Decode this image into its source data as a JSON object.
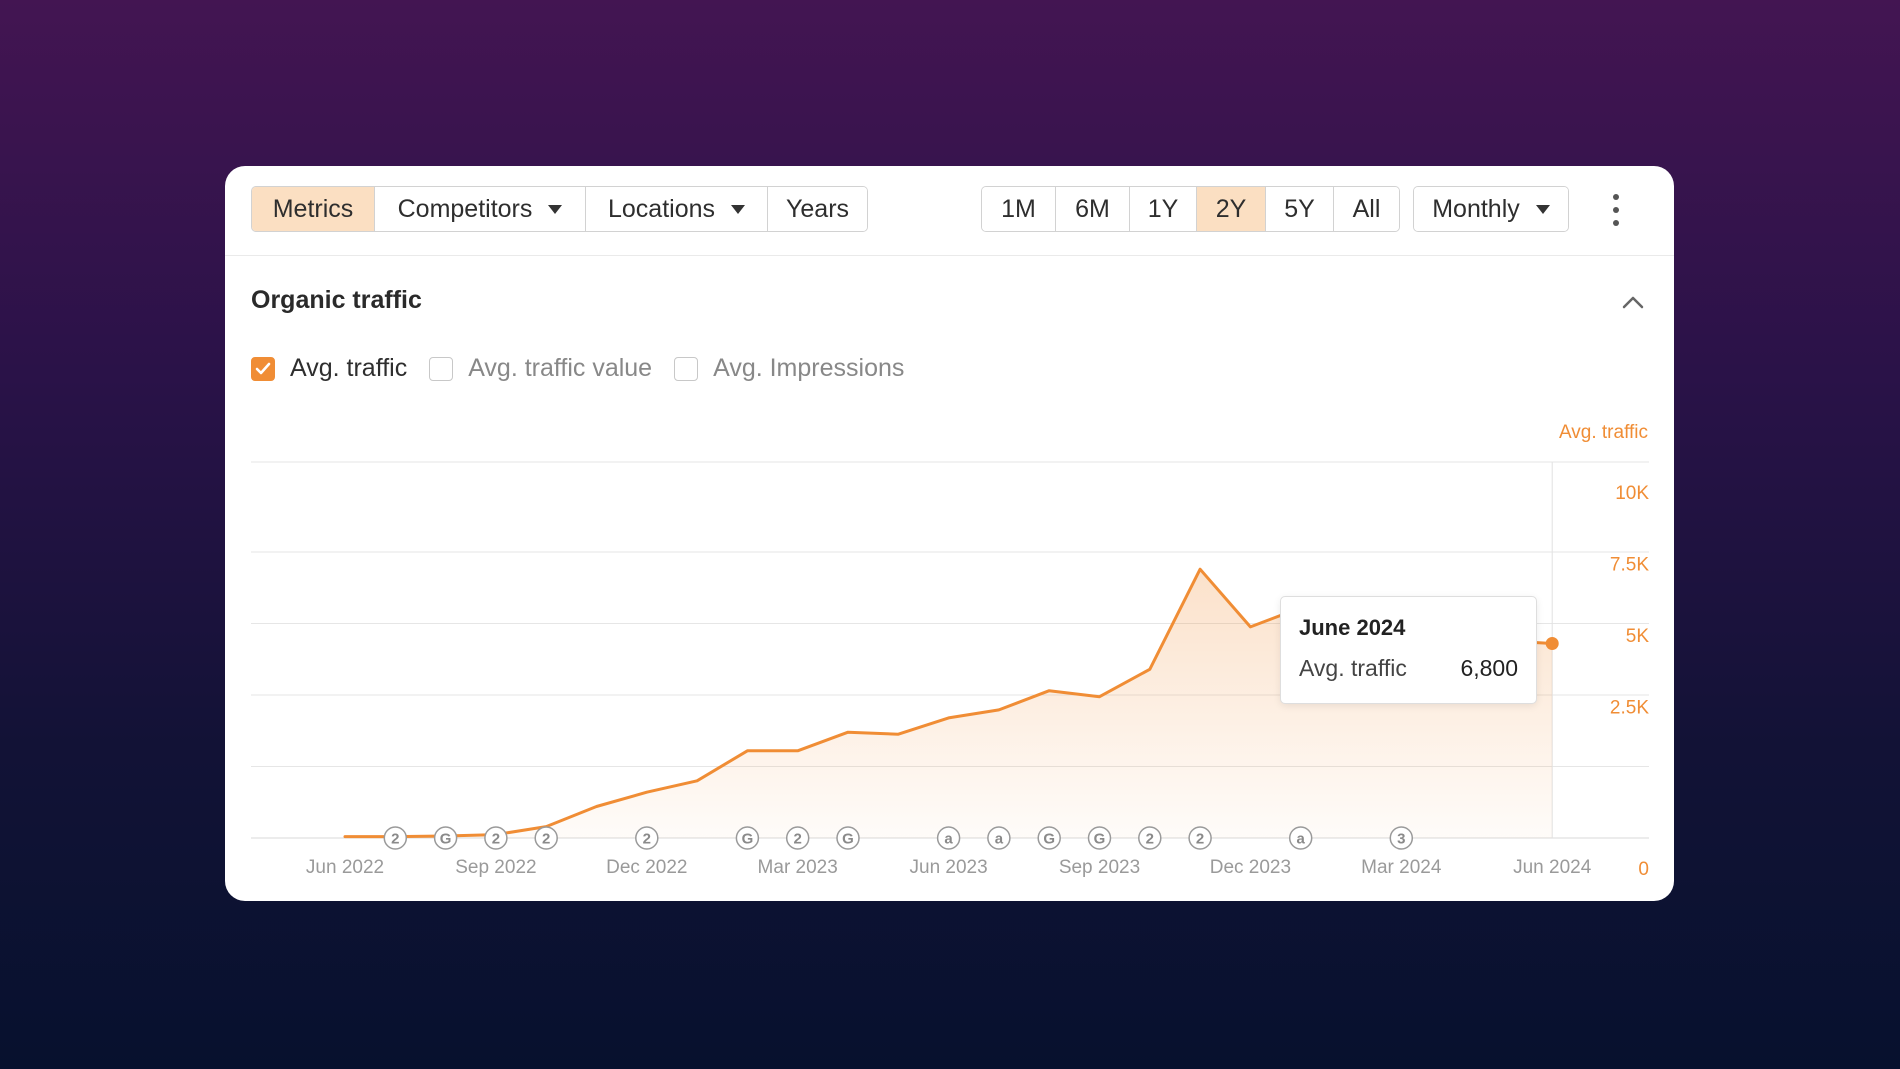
{
  "toolbar": {
    "left_buttons": [
      "Metrics",
      "Competitors",
      "Locations",
      "Years"
    ],
    "range_buttons": [
      "1M",
      "6M",
      "1Y",
      "2Y",
      "5Y",
      "All"
    ],
    "active_range": "2Y",
    "interval": "Monthly"
  },
  "section": {
    "title": "Organic traffic",
    "checks": [
      {
        "label": "Avg. traffic",
        "checked": true
      },
      {
        "label": "Avg. traffic value",
        "checked": false
      },
      {
        "label": "Avg. Impressions",
        "checked": false
      }
    ]
  },
  "tooltip": {
    "date": "June 2024",
    "label": "Avg. traffic",
    "value": "6,800"
  },
  "colors": {
    "accent": "#f08d35",
    "active_button": "#fbdfc2"
  },
  "chart_data": {
    "type": "area",
    "ylabel": "Avg. traffic",
    "ylim": [
      0,
      10000
    ],
    "y_ticks": [
      {
        "value": 0,
        "label": "0"
      },
      {
        "value": 2500,
        "label": "2.5K"
      },
      {
        "value": 5000,
        "label": "5K"
      },
      {
        "value": 7500,
        "label": "7.5K"
      },
      {
        "value": 10000,
        "label": "10K"
      }
    ],
    "x_ticks": [
      {
        "index": 0,
        "label": "Jun 2022"
      },
      {
        "index": 3,
        "label": "Sep 2022"
      },
      {
        "index": 6,
        "label": "Dec 2022"
      },
      {
        "index": 9,
        "label": "Mar 2023"
      },
      {
        "index": 12,
        "label": "Jun 2023"
      },
      {
        "index": 15,
        "label": "Sep 2023"
      },
      {
        "index": 18,
        "label": "Dec 2023"
      },
      {
        "index": 21,
        "label": "Mar 2024"
      },
      {
        "index": 24,
        "label": "Jun 2024"
      }
    ],
    "series": [
      {
        "x": [
          "Jun 2022",
          "Jul 2022",
          "Aug 2022",
          "Sep 2022",
          "Oct 2022",
          "Nov 2022",
          "Dec 2022",
          "Jan 2023",
          "Feb 2023",
          "Mar 2023",
          "Apr 2023",
          "May 2023",
          "Jun 2023",
          "Jul 2023",
          "Aug 2023",
          "Sep 2023",
          "Oct 2023",
          "Nov 2023",
          "Dec 2023",
          "Jan 2024",
          "Feb 2024",
          "Mar 2024",
          "Apr 2024",
          "May 2024",
          "Jun 2024"
        ],
        "values": [
          50,
          50,
          70,
          120,
          400,
          1100,
          1600,
          2000,
          3050,
          3050,
          3700,
          3630,
          4200,
          4480,
          5150,
          4940,
          5900,
          9400,
          7380,
          8050,
          5700,
          6120,
          6550,
          6900,
          6800
        ]
      }
    ],
    "annotations": [
      {
        "x": 1.0,
        "label": "2"
      },
      {
        "x": 2.0,
        "label": "G"
      },
      {
        "x": 3.0,
        "label": "2"
      },
      {
        "x": 4.0,
        "label": "2"
      },
      {
        "x": 6.0,
        "label": "2"
      },
      {
        "x": 8.0,
        "label": "G"
      },
      {
        "x": 9.0,
        "label": "2"
      },
      {
        "x": 10.0,
        "label": "G"
      },
      {
        "x": 12.0,
        "label": "a"
      },
      {
        "x": 13.0,
        "label": "a"
      },
      {
        "x": 14.0,
        "label": "G"
      },
      {
        "x": 15.0,
        "label": "G"
      },
      {
        "x": 16.0,
        "label": "2"
      },
      {
        "x": 17.0,
        "label": "2"
      },
      {
        "x": 19.0,
        "label": "a"
      },
      {
        "x": 21.0,
        "label": "3"
      }
    ],
    "highlight_index": 24
  }
}
